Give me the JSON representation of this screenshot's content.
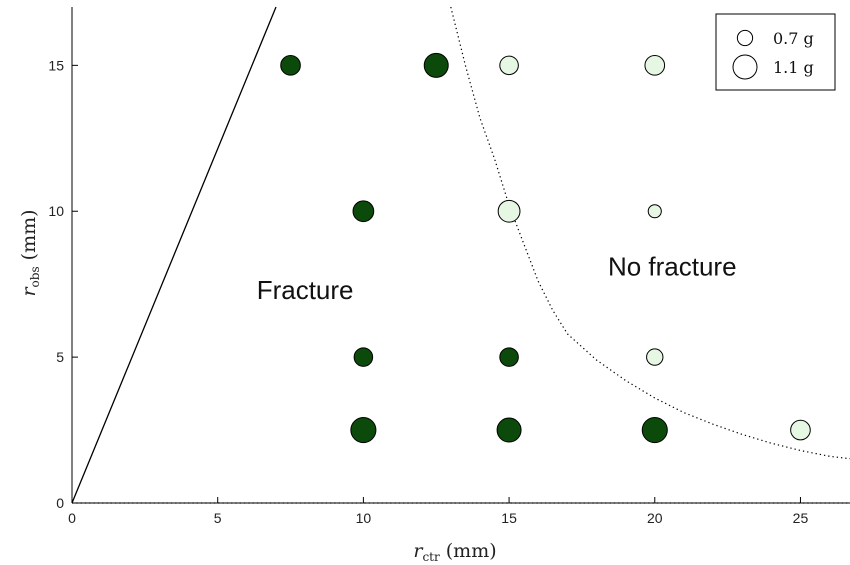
{
  "chart_data": {
    "type": "scatter",
    "xlabel": {
      "main": "r",
      "sub": "ctr",
      "unit": " (mm)"
    },
    "ylabel": {
      "main": "r",
      "sub": "obs",
      "unit": " (mm)"
    },
    "xlim": [
      0,
      26.7
    ],
    "ylim": [
      0,
      17
    ],
    "xticks": [
      0,
      5,
      10,
      15,
      20,
      25
    ],
    "yticks": [
      0,
      5,
      10,
      15
    ],
    "grid": false,
    "legend_position": "top-right",
    "legend": [
      {
        "label": "0.7 g",
        "mass": 0.7
      },
      {
        "label": "1.1 g",
        "mass": 1.1
      }
    ],
    "annotations": [
      {
        "text": "Fracture",
        "x": 8,
        "y": 7.3
      },
      {
        "text": "No fracture",
        "x": 20.6,
        "y": 8.1
      }
    ],
    "series": [
      {
        "fracture": true,
        "color": "#0b4a0b",
        "points": [
          {
            "x": 7.5,
            "y": 15,
            "mass": 0.9
          },
          {
            "x": 12.5,
            "y": 15,
            "mass": 1.1
          },
          {
            "x": 10,
            "y": 10,
            "mass": 0.95
          },
          {
            "x": 10,
            "y": 5,
            "mass": 0.85
          },
          {
            "x": 15,
            "y": 5,
            "mass": 0.85
          },
          {
            "x": 10,
            "y": 2.5,
            "mass": 1.15
          },
          {
            "x": 15,
            "y": 2.5,
            "mass": 1.1
          },
          {
            "x": 20,
            "y": 2.5,
            "mass": 1.15
          }
        ]
      },
      {
        "fracture": false,
        "color": "#e6f7e3",
        "points": [
          {
            "x": 15,
            "y": 15,
            "mass": 0.85
          },
          {
            "x": 20,
            "y": 15,
            "mass": 0.9
          },
          {
            "x": 15,
            "y": 10,
            "mass": 1.0
          },
          {
            "x": 20,
            "y": 10,
            "mass": 0.6
          },
          {
            "x": 20,
            "y": 5,
            "mass": 0.75
          },
          {
            "x": 25,
            "y": 2.5,
            "mass": 0.9
          }
        ]
      }
    ],
    "lines": [
      {
        "style": "solid",
        "points": [
          [
            0,
            0
          ],
          [
            7.0,
            17
          ]
        ]
      },
      {
        "style": "dotted",
        "points": [
          [
            13.0,
            17
          ],
          [
            13.5,
            15
          ],
          [
            14.0,
            13.2
          ],
          [
            14.5,
            11.8
          ],
          [
            15.0,
            10.2
          ],
          [
            15.5,
            8.9
          ],
          [
            16.0,
            7.6
          ],
          [
            16.5,
            6.6
          ],
          [
            17.0,
            5.8
          ],
          [
            18.0,
            4.9
          ],
          [
            19.0,
            4.2
          ],
          [
            20.0,
            3.6
          ],
          [
            21.0,
            3.1
          ],
          [
            22.0,
            2.7
          ],
          [
            23.0,
            2.35
          ],
          [
            24.0,
            2.05
          ],
          [
            25.0,
            1.8
          ],
          [
            26.0,
            1.6
          ],
          [
            26.7,
            1.52
          ]
        ]
      },
      {
        "style": "dotted",
        "points": [
          [
            0,
            0
          ],
          [
            26.7,
            0
          ]
        ]
      }
    ]
  }
}
